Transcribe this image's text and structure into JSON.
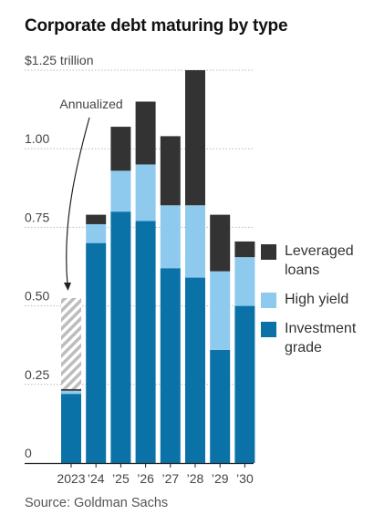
{
  "chart_data": {
    "type": "bar",
    "stacked": true,
    "title": "Corporate debt maturing by type",
    "source": "Source: Goldman Sachs",
    "categories": [
      "2023",
      "’24",
      "’25",
      "’26",
      "’27",
      "’28",
      "’29",
      "’30"
    ],
    "series": [
      {
        "name": "Investment grade",
        "color": "#0b72a8",
        "values": [
          0.22,
          0.7,
          0.8,
          0.77,
          0.62,
          0.59,
          0.36,
          0.5
        ]
      },
      {
        "name": "High yield",
        "color": "#8ecaee",
        "values": [
          0.01,
          0.06,
          0.13,
          0.18,
          0.2,
          0.23,
          0.25,
          0.155
        ]
      },
      {
        "name": "Leveraged loans",
        "color": "#333333",
        "values": [
          0.005,
          0.03,
          0.14,
          0.2,
          0.22,
          0.43,
          0.18,
          0.05
        ]
      }
    ],
    "annualized": {
      "label": "Annualized",
      "category": "2023",
      "value": 0.525,
      "color": "#bdbdbd"
    },
    "ylim": [
      0,
      1.25
    ],
    "yticks": [
      {
        "value": 0,
        "label": "0"
      },
      {
        "value": 0.25,
        "label": "0.25"
      },
      {
        "value": 0.5,
        "label": "0.50"
      },
      {
        "value": 0.75,
        "label": "0.75"
      },
      {
        "value": 1.0,
        "label": "1.00"
      },
      {
        "value": 1.25,
        "label": "$1.25 trillion"
      }
    ],
    "legend": {
      "position": "right",
      "items": [
        {
          "label": "Leveraged loans",
          "color": "#333333"
        },
        {
          "label": "High yield",
          "color": "#8ecaee"
        },
        {
          "label": "Investment grade",
          "color": "#0b72a8"
        }
      ]
    },
    "grid": true
  }
}
